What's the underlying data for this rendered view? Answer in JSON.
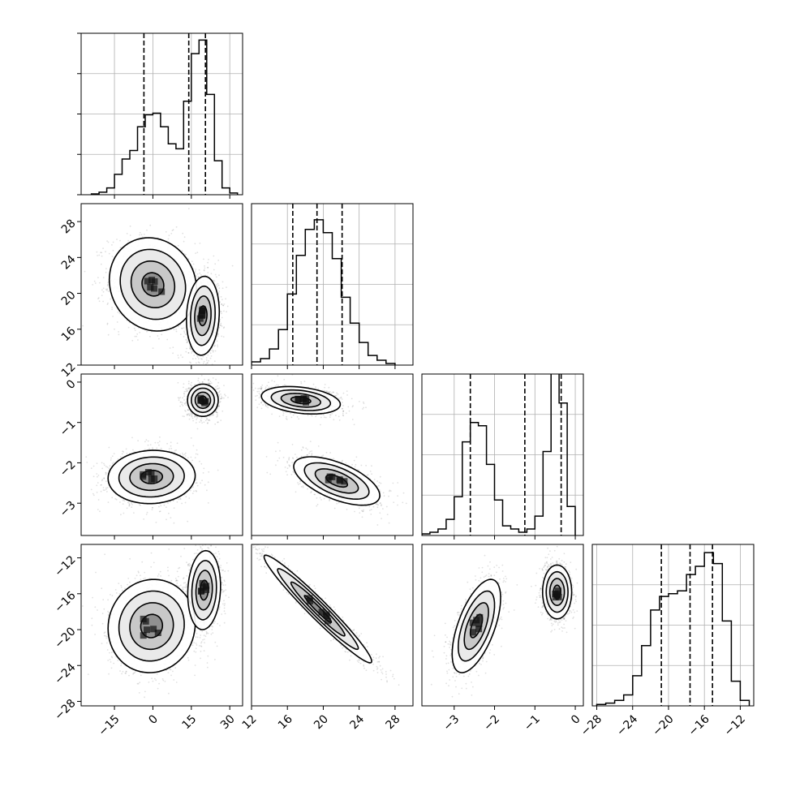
{
  "chart_data": {
    "type": "corner",
    "grid": true,
    "panels": [
      {
        "kind": "hist",
        "row": 0,
        "col": 0,
        "xlim": [
          -28,
          35
        ],
        "ymax": 95,
        "edges": [
          -24,
          -21,
          -18,
          -15,
          -12,
          -9,
          -6,
          -3,
          0,
          3,
          6,
          9,
          12,
          15,
          18,
          21,
          24,
          27,
          30,
          33
        ],
        "counts": [
          0.5,
          1.5,
          4,
          12,
          21,
          26,
          40,
          47,
          48,
          40,
          30,
          27,
          55,
          83,
          91,
          59,
          20,
          4,
          1
        ],
        "quantiles": [
          -3.5,
          14,
          20.5
        ]
      },
      {
        "kind": "hist",
        "row": 1,
        "col": 1,
        "xlim": [
          12,
          30
        ],
        "ymax": 50,
        "edges": [
          12,
          13,
          14,
          15,
          16,
          17,
          18,
          19,
          20,
          21,
          22,
          23,
          24,
          25,
          26,
          27,
          28
        ],
        "counts": [
          1,
          2,
          5,
          11,
          22,
          34,
          42,
          45,
          41,
          33,
          21,
          13,
          7,
          3,
          1.5,
          0.5
        ],
        "quantiles": [
          16.6,
          19.3,
          22.1
        ]
      },
      {
        "kind": "hist",
        "row": 2,
        "col": 2,
        "xlim": [
          -3.8,
          0.2
        ],
        "ymax": 50,
        "edges": [
          -3.8,
          -3.6,
          -3.4,
          -3.2,
          -3.0,
          -2.8,
          -2.6,
          -2.4,
          -2.2,
          -2.0,
          -1.8,
          -1.6,
          -1.4,
          -1.2,
          -1.0,
          -0.8,
          -0.6,
          -0.4,
          -0.2,
          0.0
        ],
        "counts": [
          0.5,
          1,
          2,
          5,
          12,
          29,
          35,
          34,
          22,
          11,
          3,
          2,
          1,
          2,
          6,
          26,
          51,
          41,
          9
        ],
        "quantiles": [
          -2.6,
          -1.25,
          -0.35
        ]
      },
      {
        "kind": "hist",
        "row": 3,
        "col": 3,
        "xlim": [
          -28.5,
          -10.5
        ],
        "ymax": 59,
        "edges": [
          -28,
          -27,
          -26,
          -25,
          -24,
          -23,
          -22,
          -21,
          -20,
          -19,
          -18,
          -17,
          -16,
          -15,
          -14,
          -13,
          -12,
          -11
        ],
        "counts": [
          0.5,
          1,
          2,
          4,
          11,
          22,
          35,
          40,
          41,
          42,
          48,
          51,
          56,
          52,
          31,
          9,
          2
        ],
        "quantiles": [
          -20.8,
          -17.6,
          -15.1
        ]
      },
      {
        "kind": "scatter2d",
        "row": 1,
        "col": 0,
        "xlim": [
          -28,
          35
        ],
        "ylim": [
          12,
          30
        ],
        "clusters": [
          {
            "cx": 0,
            "cy": 21,
            "sx": 8.5,
            "sy": 2.6,
            "rho": -0.1
          },
          {
            "cx": 19.5,
            "cy": 17.5,
            "sx": 3.2,
            "sy": 2.2,
            "rho": 0.1
          }
        ]
      },
      {
        "kind": "scatter2d",
        "row": 2,
        "col": 0,
        "xlim": [
          -28,
          35
        ],
        "ylim": [
          -3.8,
          0.2
        ],
        "clusters": [
          {
            "cx": -0.5,
            "cy": -2.35,
            "sx": 8.5,
            "sy": 0.33,
            "rho": 0.05
          },
          {
            "cx": 19.5,
            "cy": -0.45,
            "sx": 3.0,
            "sy": 0.2,
            "rho": 0
          }
        ]
      },
      {
        "kind": "scatter2d",
        "row": 2,
        "col": 1,
        "xlim": [
          12,
          30
        ],
        "ylim": [
          -3.8,
          0.2
        ],
        "clusters": [
          {
            "cx": 17.5,
            "cy": -0.45,
            "sx": 2.2,
            "sy": 0.17,
            "rho": -0.3
          },
          {
            "cx": 21.5,
            "cy": -2.45,
            "sx": 2.4,
            "sy": 0.3,
            "rho": -0.6
          }
        ]
      },
      {
        "kind": "scatter2d",
        "row": 3,
        "col": 0,
        "xlim": [
          -28,
          35
        ],
        "ylim": [
          -28.5,
          -10.5
        ],
        "clusters": [
          {
            "cx": -0.5,
            "cy": -19.6,
            "sx": 8.5,
            "sy": 2.6,
            "rho": 0.05
          },
          {
            "cx": 20,
            "cy": -15.6,
            "sx": 3.2,
            "sy": 2.2,
            "rho": 0.1
          }
        ]
      },
      {
        "kind": "scatter2d",
        "row": 3,
        "col": 1,
        "xlim": [
          12,
          30
        ],
        "ylim": [
          -28.5,
          -10.5
        ],
        "clusters": [
          {
            "cx": 19.4,
            "cy": -17.7,
            "sx": 3.0,
            "sy": 3.0,
            "rho": -0.97
          }
        ]
      },
      {
        "kind": "scatter2d",
        "row": 3,
        "col": 2,
        "xlim": [
          -3.8,
          0.2
        ],
        "ylim": [
          -28.5,
          -10.5
        ],
        "clusters": [
          {
            "cx": -2.45,
            "cy": -19.6,
            "sx": 0.3,
            "sy": 2.6,
            "rho": 0.6
          },
          {
            "cx": -0.45,
            "cy": -15.8,
            "sx": 0.18,
            "sy": 1.5,
            "rho": 0
          }
        ]
      }
    ],
    "axes": [
      {
        "id": "x0",
        "row": 3,
        "col": 0,
        "ticks": [
          -15,
          0,
          15,
          30
        ],
        "labels": [
          "−15",
          "0",
          "15",
          "30"
        ]
      },
      {
        "id": "x1",
        "row": 3,
        "col": 1,
        "ticks": [
          12,
          16,
          20,
          24,
          28
        ],
        "labels": [
          "12",
          "16",
          "20",
          "24",
          "28"
        ]
      },
      {
        "id": "x2",
        "row": 3,
        "col": 2,
        "ticks": [
          -3,
          -2,
          -1,
          0
        ],
        "labels": [
          "−3",
          "−2",
          "−1",
          "0"
        ]
      },
      {
        "id": "x3",
        "row": 3,
        "col": 3,
        "ticks": [
          -28,
          -24,
          -20,
          -16,
          -12
        ],
        "labels": [
          "−28",
          "−24",
          "−20",
          "−16",
          "−12"
        ]
      },
      {
        "id": "y1",
        "row": 1,
        "col": 0,
        "ticks": [
          12,
          16,
          20,
          24,
          28
        ],
        "labels": [
          "12",
          "16",
          "20",
          "24",
          "28"
        ]
      },
      {
        "id": "y2",
        "row": 2,
        "col": 0,
        "ticks": [
          -3,
          -2,
          -1,
          0
        ],
        "labels": [
          "−3",
          "−2",
          "−1",
          "0"
        ]
      },
      {
        "id": "y3",
        "row": 3,
        "col": 0,
        "ticks": [
          -28,
          -24,
          -20,
          -16,
          -12
        ],
        "labels": [
          "−28",
          "−24",
          "−20",
          "−16",
          "−12"
        ]
      }
    ]
  }
}
